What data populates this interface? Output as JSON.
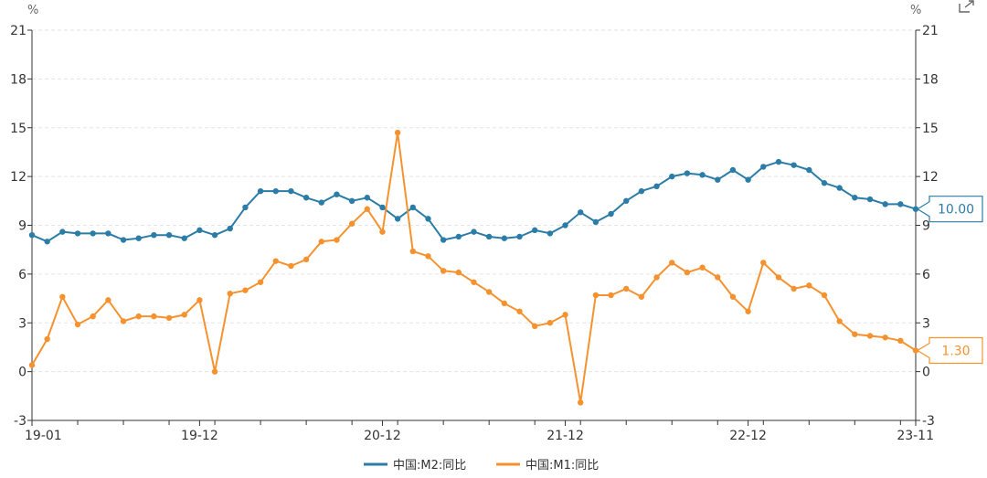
{
  "chart_data": {
    "type": "line",
    "y_unit_left": "%",
    "y_unit_right": "%",
    "ylim": [
      -3,
      21
    ],
    "yticks": [
      -3,
      0,
      3,
      6,
      9,
      12,
      15,
      18,
      21
    ],
    "x_tick_labels": [
      "19-01",
      "19-12",
      "20-12",
      "21-12",
      "22-12",
      "23-11"
    ],
    "x_tick_positions": [
      0,
      11,
      23,
      35,
      47,
      58
    ],
    "grid": true,
    "legend_position": "bottom-center",
    "colors": {
      "m2": "#2b7ca7",
      "m1": "#f5922f"
    },
    "series": [
      {
        "key": "m2",
        "name": "中国:M2:同比",
        "end_label": "10.00",
        "values": [
          8.4,
          8.0,
          8.6,
          8.5,
          8.5,
          8.5,
          8.1,
          8.2,
          8.4,
          8.4,
          8.2,
          8.7,
          8.4,
          8.8,
          10.1,
          11.1,
          11.1,
          11.1,
          10.7,
          10.4,
          10.9,
          10.5,
          10.7,
          10.1,
          9.4,
          10.1,
          9.4,
          8.1,
          8.3,
          8.6,
          8.3,
          8.2,
          8.3,
          8.7,
          8.5,
          9.0,
          9.8,
          9.2,
          9.7,
          10.5,
          11.1,
          11.4,
          12.0,
          12.2,
          12.1,
          11.8,
          12.4,
          11.8,
          12.6,
          12.9,
          12.7,
          12.4,
          11.6,
          11.3,
          10.7,
          10.6,
          10.3,
          10.3,
          10.0
        ]
      },
      {
        "key": "m1",
        "name": "中国:M1:同比",
        "end_label": "1.30",
        "values": [
          0.4,
          2.0,
          4.6,
          2.9,
          3.4,
          4.4,
          3.1,
          3.4,
          3.4,
          3.3,
          3.5,
          4.4,
          0.0,
          4.8,
          5.0,
          5.5,
          6.8,
          6.5,
          6.9,
          8.0,
          8.1,
          9.1,
          10.0,
          8.6,
          14.7,
          7.4,
          7.1,
          6.2,
          6.1,
          5.5,
          4.9,
          4.2,
          3.7,
          2.8,
          3.0,
          3.5,
          -1.9,
          4.7,
          4.7,
          5.1,
          4.6,
          5.8,
          6.7,
          6.1,
          6.4,
          5.8,
          4.6,
          3.7,
          6.7,
          5.8,
          5.1,
          5.3,
          4.7,
          3.1,
          2.3,
          2.2,
          2.1,
          1.9,
          1.3
        ]
      }
    ]
  }
}
